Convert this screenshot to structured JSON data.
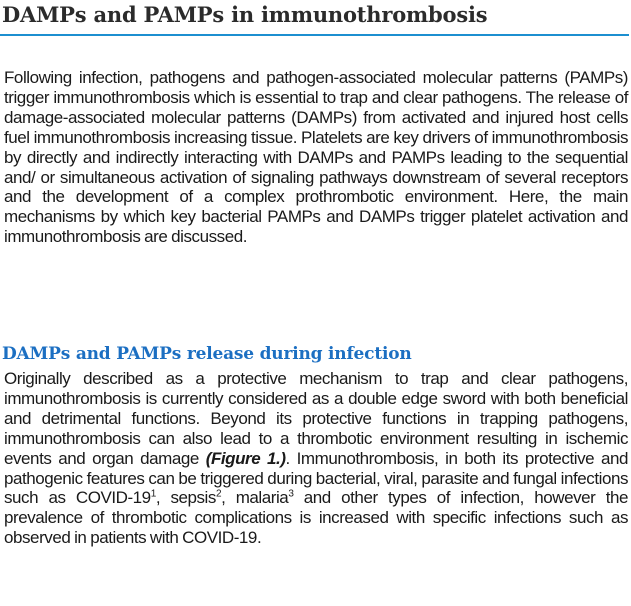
{
  "title": "DAMPs and PAMPs in immunothrombosis",
  "intro_paragraph": "Following infection, pathogens and pathogen-associated molecular patterns (PAMPs) trigger immunothrombosis which is essential to trap and clear pathogens. The release of damage-associated molecular patterns (DAMPs) from activated and injured host cells fuel immunothrombosis increasing tissue. Platelets are key drivers of immunothrombosis by directly and indirectly interacting with DAMPs and PAMPs leading to the sequential and/ or simultaneous activation of signaling pathways downstream of several receptors and the development of a complex prothrombotic environment. Here, the main mechanisms by which key bacterial PAMPs and DAMPs trigger platelet activation and immunothrombosis are discussed.",
  "section": {
    "heading": "DAMPs and PAMPs release during infection",
    "text_before_figure": "Originally described as a protective mechanism to trap and clear pathogens, immunothrombosis is currently considered as a double edge sword with both beneficial and detrimental functions. Beyond its protective functions in trapping pathogens, immunothrombosis can also lead to a thrombotic environment resulting in ischemic events and organ damage ",
    "figure_ref": "(Figure 1.)",
    "text_after_figure": ". Immunothrombosis, in both its protective and pathogenic features can be triggered during bacterial, viral, parasite and fungal infections such as ",
    "covid_term": "COVID-19",
    "ref1": "1",
    "sep1": ", ",
    "sepsis_term": "sepsis",
    "ref2": "2",
    "sep2": ", ",
    "malaria_term": "malaria",
    "ref3": "3",
    "text_end": " and other types of infection, however the prevalence of thrombotic complications is increased with specific infections such as observed in patients with COVID-19."
  }
}
